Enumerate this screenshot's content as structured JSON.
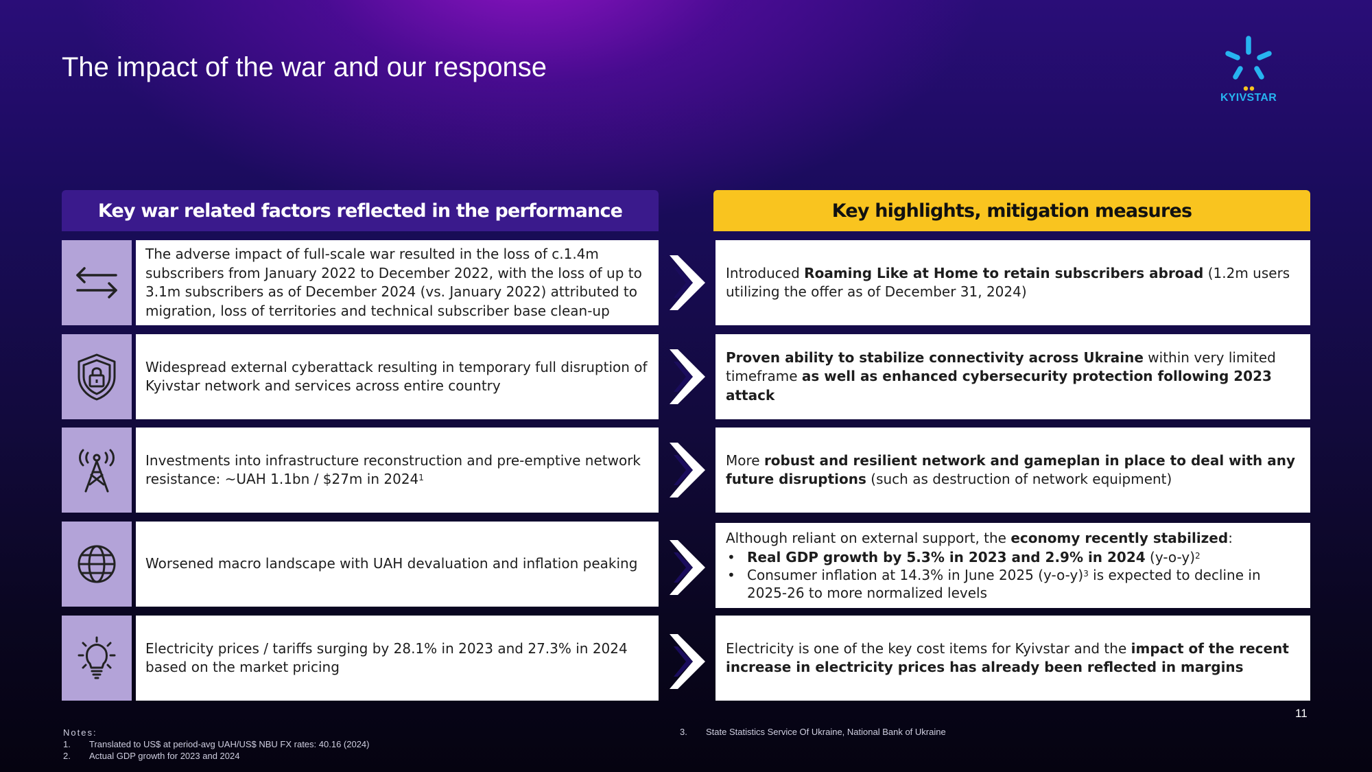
{
  "slide": {
    "title": "The impact of the war and our response",
    "page_number": "11",
    "logo": {
      "text": "KYIVSTAR",
      "color": "#27b4f0",
      "dots_color": "#f9c41f"
    }
  },
  "left_column": {
    "header": "Key war related factors reflected in the performance"
  },
  "right_column": {
    "header": "Key highlights, mitigation measures"
  },
  "rows": [
    {
      "icon": "arrows-exchange-icon",
      "factor": "The adverse impact of full-scale war resulted in the loss of c.1.4m subscribers from January 2022 to December 2022, with the loss of up to 3.1m subscribers as of December 2024 (vs. January 2022) attributed to migration, loss of territories and technical subscriber base clean-up",
      "highlight": {
        "t1": "Introduced ",
        "b1": "Roaming Like at Home to retain subscribers abroad",
        "t2": " (1.2m users utilizing the offer as of December 31, 2024)"
      }
    },
    {
      "icon": "shield-lock-icon",
      "factor": "Widespread external cyberattack resulting in temporary full disruption of Kyivstar network and services across entire country",
      "highlight": {
        "b1": "Proven ability to stabilize connectivity across Ukraine",
        "t1": " within very limited timeframe ",
        "b2": "as well as enhanced cybersecurity protection following 2023 attack"
      }
    },
    {
      "icon": "antenna-tower-icon",
      "factor": "Investments into infrastructure reconstruction and pre-emptive network resistance: ~UAH 1.1bn / $27m in 2024",
      "factor_sup": "1",
      "highlight": {
        "t1": "More ",
        "b1": "robust and resilient network and gameplan in place to deal with any future disruptions",
        "t2": " (such as destruction of network equipment)"
      }
    },
    {
      "icon": "globe-icon",
      "factor": "Worsened macro landscape with UAH devaluation and inflation peaking",
      "highlight": {
        "t1": "Although reliant on external support, the ",
        "b1": "economy recently stabilized",
        "t2": ":",
        "bullet1_bold": "Real GDP growth by 5.3% in 2023 and 2.9% in 2024",
        "bullet1_text": " (y-o-y)",
        "bullet1_sup": "2",
        "bullet2_text1": "Consumer inflation at 14.3% in June 2025 (y-o-y)",
        "bullet2_sup": "3",
        "bullet2_text2": " is expected to decline in 2025-26 to more normalized levels"
      }
    },
    {
      "icon": "lightbulb-icon",
      "factor": "Electricity prices / tariffs surging by 28.1% in 2023 and 27.3% in 2024 based on the market pricing",
      "highlight": {
        "t1": "Electricity is one of the key cost items for Kyivstar and the ",
        "b1": "impact of the recent increase in electricity prices has already been reflected in margins"
      }
    }
  ],
  "notes": {
    "header": "Notes:",
    "items": [
      {
        "num": "1.",
        "text": "Translated to US$ at period-avg UAH/US$ NBU FX rates: 40.16 (2024)"
      },
      {
        "num": "2.",
        "text": "Actual GDP growth for 2023 and 2024"
      },
      {
        "num": "3.",
        "text": "State Statistics Service Of Ukraine, National Bank of Ukraine"
      }
    ]
  },
  "colors": {
    "left_header_bg": "#3a1a8c",
    "right_header_bg": "#f9c41f",
    "icon_box_bg": "#b3a3d8"
  }
}
